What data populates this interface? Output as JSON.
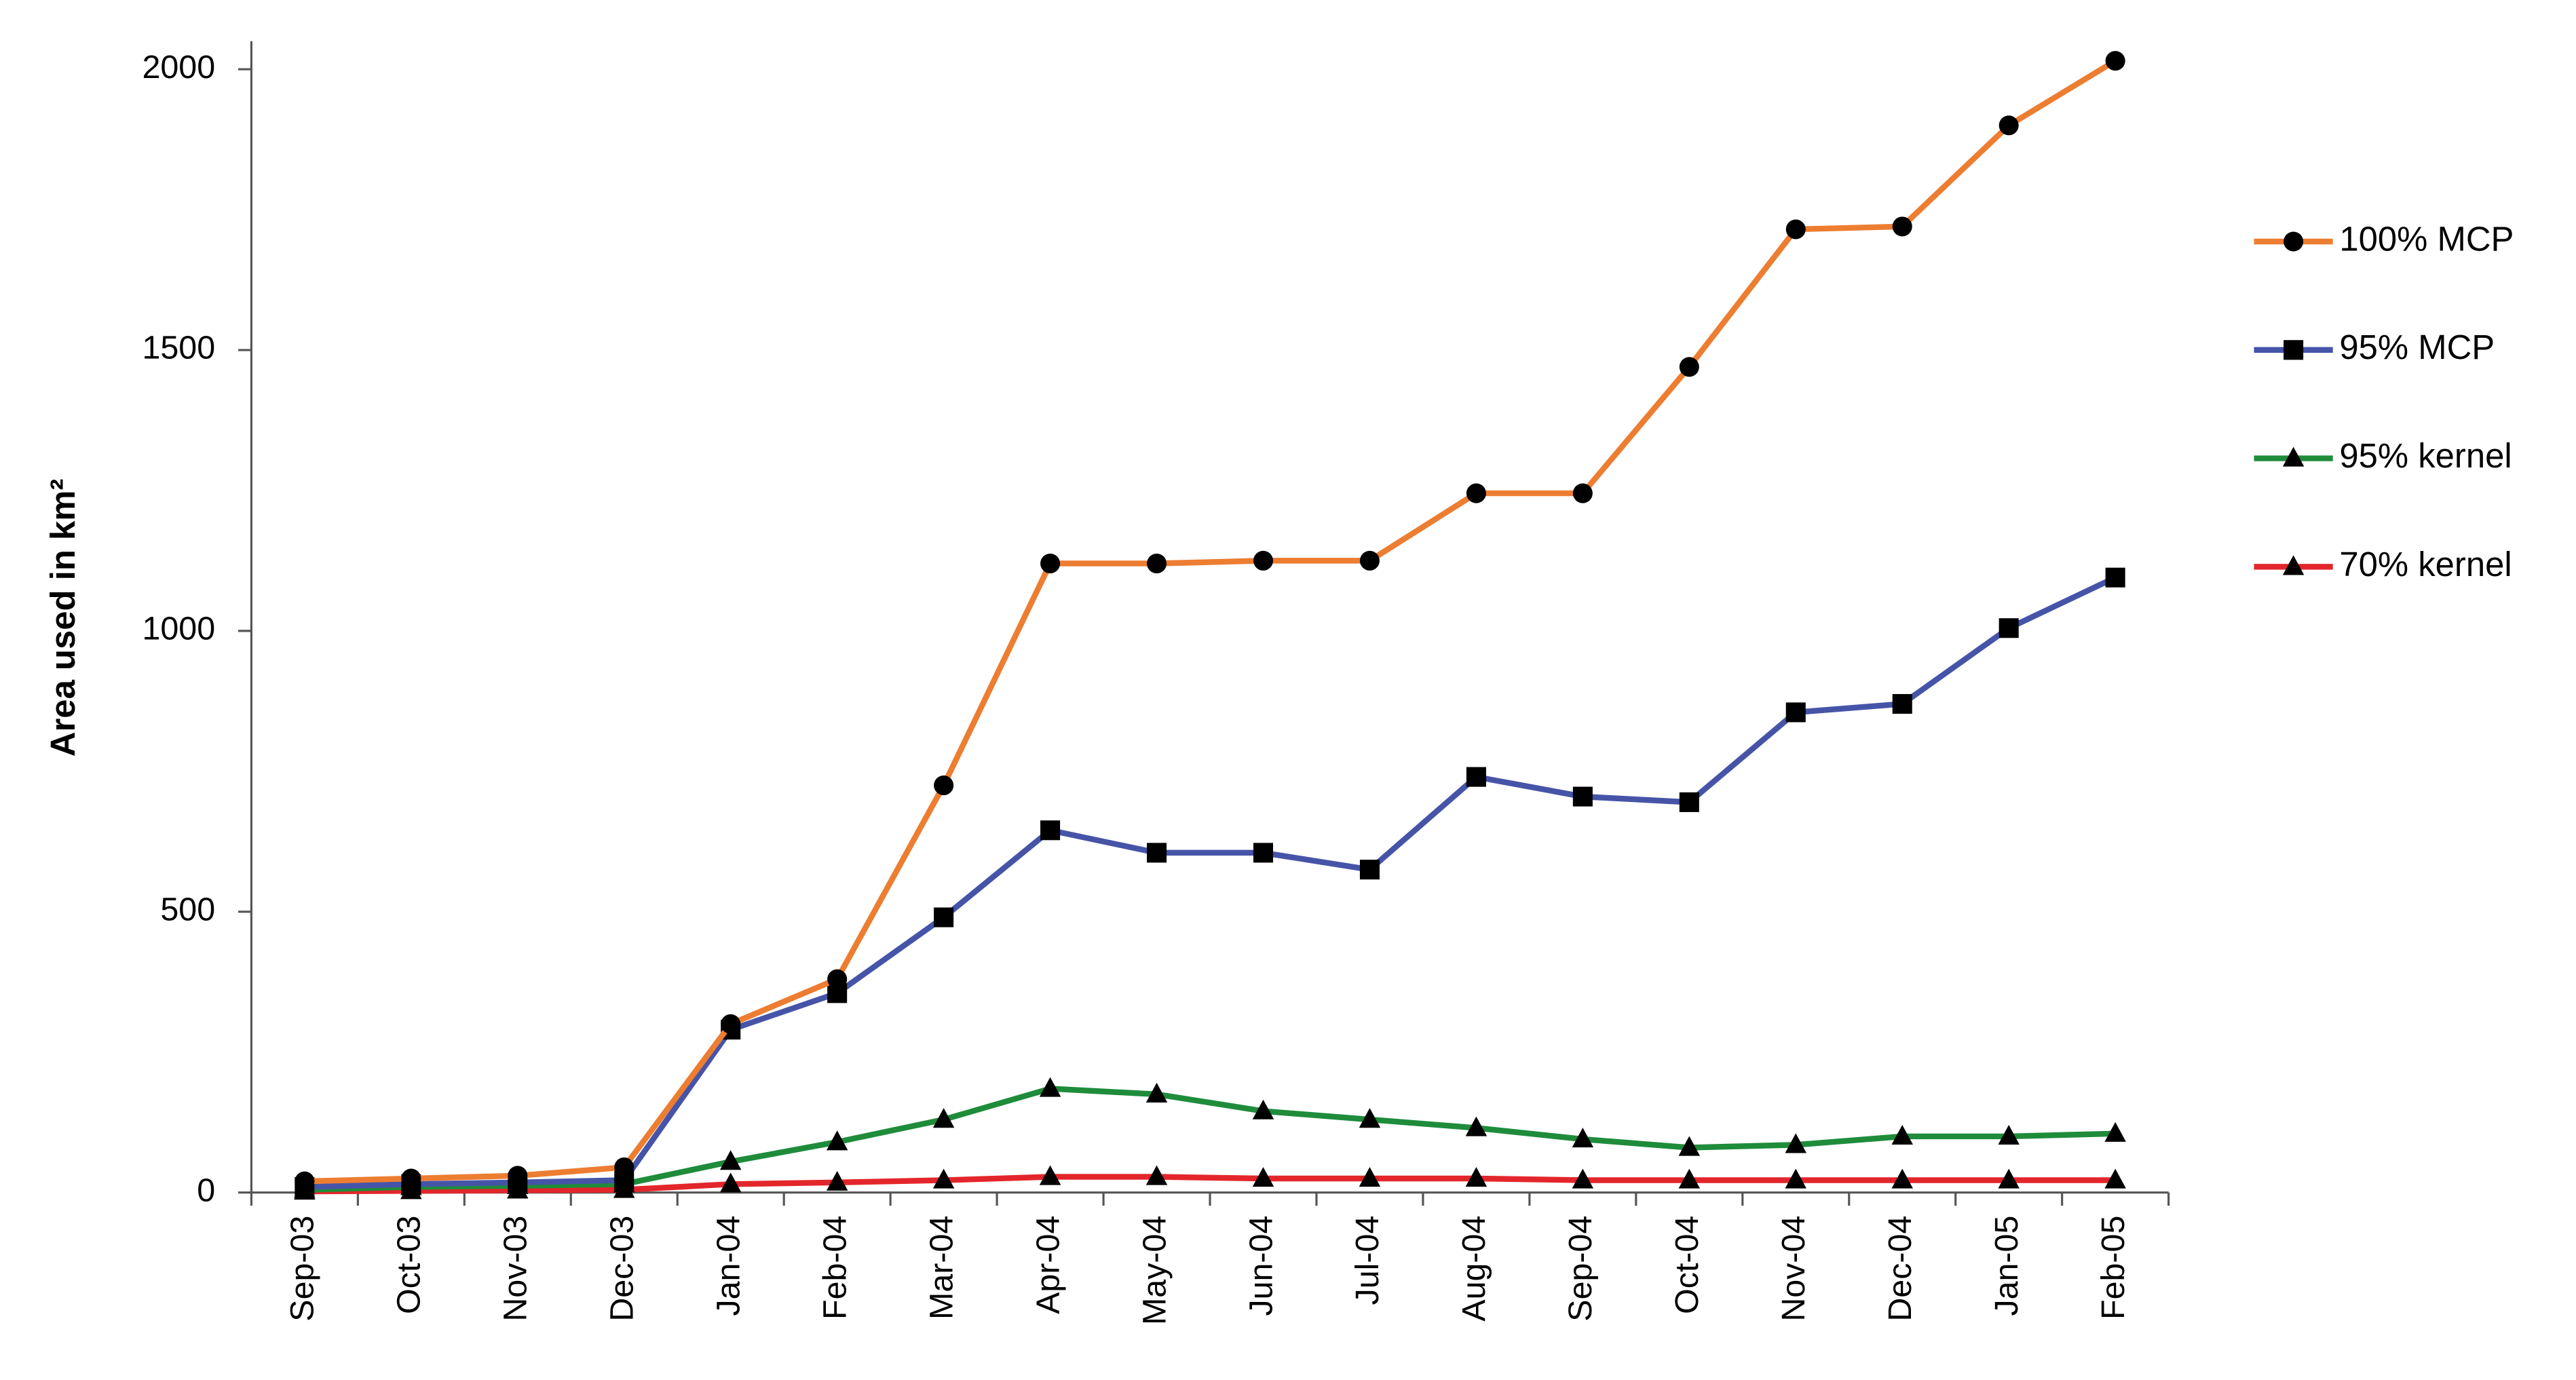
{
  "chart_data": {
    "type": "line",
    "y_label": "Area used in km²",
    "categories": [
      "Sep-03",
      "Oct-03",
      "Nov-03",
      "Dec-03",
      "Jan-04",
      "Feb-04",
      "Mar-04",
      "Apr-04",
      "May-04",
      "Jun-04",
      "Jul-04",
      "Aug-04",
      "Sep-04",
      "Oct-04",
      "Nov-04",
      "Dec-04",
      "Jan-05",
      "Feb-05"
    ],
    "series": [
      {
        "name": "100% MCP",
        "color": "#ed7d31",
        "marker": "circle",
        "values": [
          20,
          25,
          30,
          45,
          300,
          380,
          725,
          1120,
          1120,
          1125,
          1125,
          1245,
          1245,
          1470,
          1715,
          1720,
          1900,
          2015
        ]
      },
      {
        "name": "95% MCP",
        "color": "#4654a8",
        "marker": "square",
        "values": [
          10,
          15,
          18,
          22,
          290,
          355,
          490,
          645,
          605,
          605,
          575,
          740,
          705,
          695,
          855,
          870,
          1005,
          1095
        ]
      },
      {
        "name": "95% kernel",
        "color": "#1e8c3a",
        "marker": "triangle",
        "values": [
          5,
          10,
          12,
          15,
          55,
          90,
          130,
          185,
          175,
          145,
          130,
          115,
          95,
          80,
          85,
          100,
          100,
          105
        ]
      },
      {
        "name": "70% kernel",
        "color": "#e3262b",
        "marker": "triangle",
        "values": [
          2,
          3,
          4,
          5,
          15,
          18,
          22,
          28,
          28,
          25,
          25,
          25,
          22,
          22,
          22,
          22,
          22,
          22
        ]
      }
    ],
    "ylim": [
      0,
      2050
    ],
    "yticks": [
      0,
      500,
      1000,
      1500,
      2000
    ],
    "grid": false,
    "legend": "right"
  }
}
